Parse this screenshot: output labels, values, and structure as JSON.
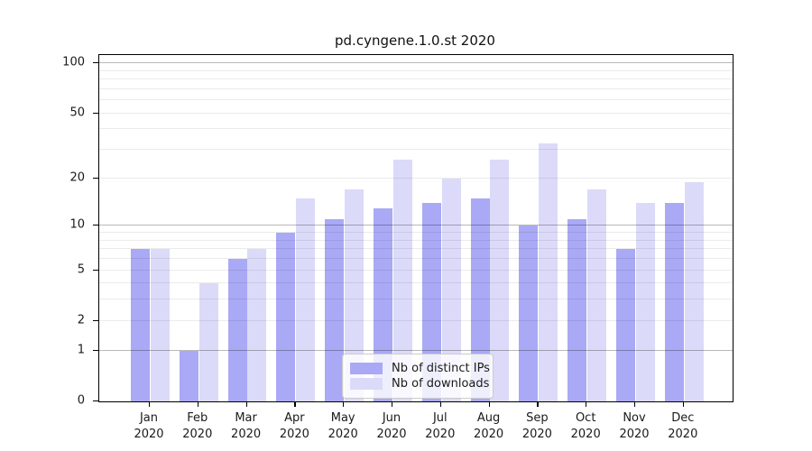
{
  "title": "pd.cyngene.1.0.st 2020",
  "chart_data": {
    "type": "bar",
    "title": "pd.cyngene.1.0.st 2020",
    "categories": [
      "Jan 2020",
      "Feb 2020",
      "Mar 2020",
      "Apr 2020",
      "May 2020",
      "Jun 2020",
      "Jul 2020",
      "Aug 2020",
      "Sep 2020",
      "Oct 2020",
      "Nov 2020",
      "Dec 2020"
    ],
    "series": [
      {
        "name": "Nb of distinct IPs",
        "color": "#a9a9f6",
        "values": [
          7,
          1,
          6,
          9,
          11,
          13,
          14,
          15,
          10,
          11,
          7,
          14
        ]
      },
      {
        "name": "Nb of downloads",
        "color": "#dbdaf9",
        "values": [
          7,
          4,
          7,
          15,
          17,
          26,
          20,
          26,
          33,
          17,
          14,
          19
        ]
      }
    ],
    "xlabel": "",
    "ylabel": "",
    "yscale": "log1p",
    "ylim": [
      0,
      112
    ],
    "ytick_labels": [
      0,
      1,
      2,
      5,
      10,
      20,
      50,
      100
    ],
    "major_gridlines": [
      1,
      10,
      100
    ],
    "minor_gridlines": [
      2,
      3,
      4,
      5,
      6,
      7,
      8,
      9,
      20,
      30,
      40,
      50,
      60,
      70,
      80,
      90
    ],
    "grid": true,
    "legend_position": "lower-center-inside"
  },
  "colors": {
    "bar_distinct_ips": "#a9a9f6",
    "bar_downloads": "#dbdaf9",
    "major_grid": "#b8b8b8",
    "minor_grid": "#ebebeb",
    "axis": "#000000",
    "text": "#1a1a1a"
  }
}
